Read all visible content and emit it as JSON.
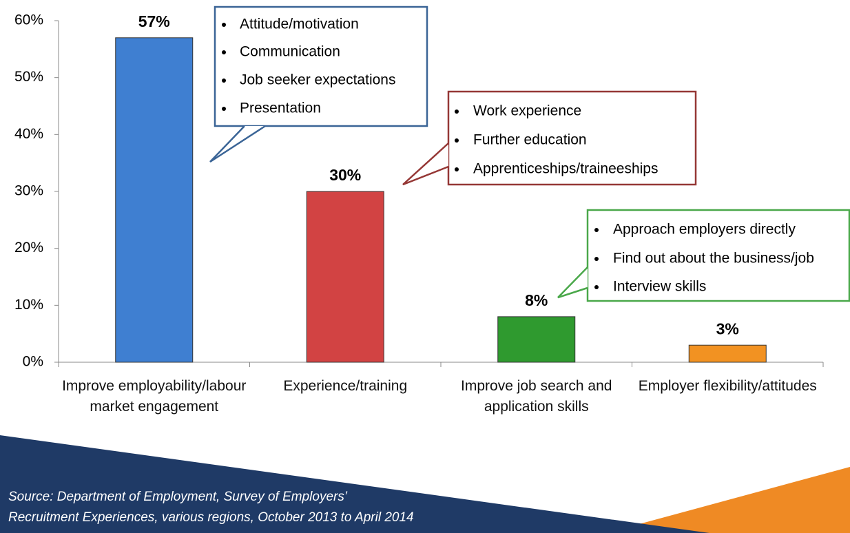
{
  "chart_data": {
    "type": "bar",
    "categories": [
      "Improve employability/labour market engagement",
      "Experience/training",
      "Improve job search and application skills",
      "Employer flexibility/attitudes"
    ],
    "values": [
      57,
      30,
      8,
      3
    ],
    "value_labels": [
      "57%",
      "30%",
      "8%",
      "3%"
    ],
    "colors": [
      "#3f7fd1",
      "#d24343",
      "#2f9a2f",
      "#f29222"
    ],
    "ylim": [
      0,
      60
    ],
    "yticks": [
      {
        "value": 0,
        "label": "0%"
      },
      {
        "value": 10,
        "label": "10%"
      },
      {
        "value": 20,
        "label": "20%"
      },
      {
        "value": 30,
        "label": "30%"
      },
      {
        "value": 40,
        "label": "40%"
      },
      {
        "value": 50,
        "label": "50%"
      },
      {
        "value": 60,
        "label": "60%"
      }
    ],
    "grid": false,
    "callouts": [
      {
        "color": "#3a6496",
        "items": [
          "Attitude/motivation",
          "Communication",
          "Job seeker expectations",
          "Presentation"
        ]
      },
      {
        "color": "#953735",
        "items": [
          "Work experience",
          "Further education",
          "Apprenticeships/traineeships"
        ]
      },
      {
        "color": "#4aa84a",
        "items": [
          "Approach employers directly",
          "Find out about the business/job",
          "Interview skills"
        ]
      }
    ],
    "source_lines": [
      "Source: Department of Employment, Survey of Employers’",
      "Recruitment Experiences, various regions, October 2013 to April 2014"
    ]
  }
}
